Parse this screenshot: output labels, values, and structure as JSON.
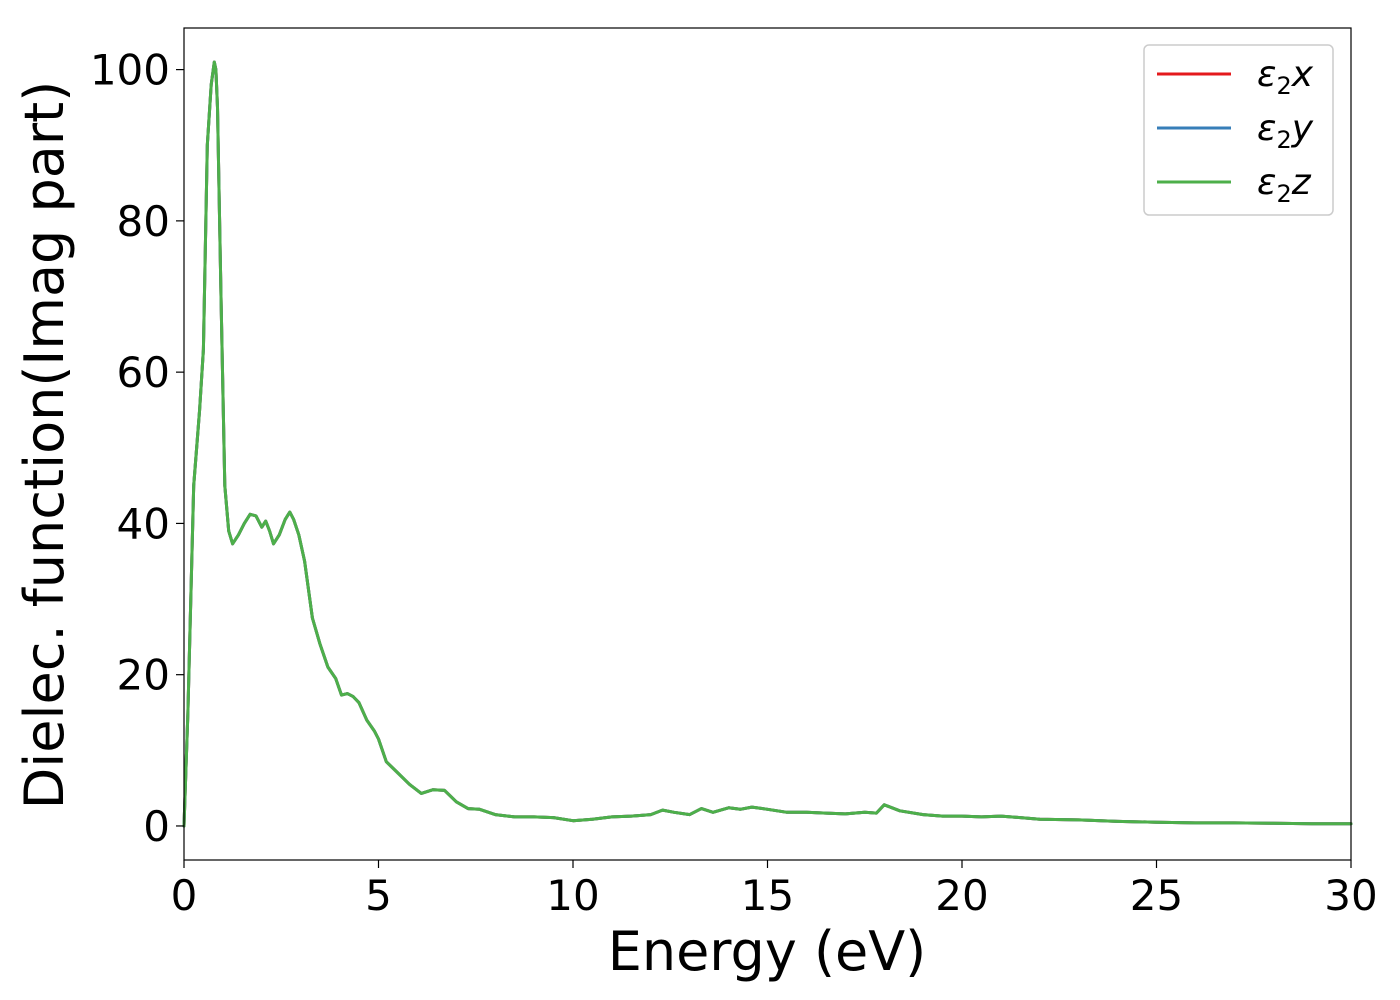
{
  "chart_data": {
    "type": "line",
    "xlabel": "Energy (eV)",
    "ylabel": "Dielec. function(Imag part)",
    "xlim": [
      0,
      30
    ],
    "ylim": [
      -4.5,
      105.5
    ],
    "xticks": [
      0,
      5,
      10,
      15,
      20,
      25,
      30
    ],
    "yticks": [
      0,
      20,
      40,
      60,
      80,
      100
    ],
    "legend_position": "top-right",
    "grid": false,
    "colors": {
      "x": "#e41a1c",
      "y": "#377eb8",
      "z": "#4daf4a"
    },
    "x": [
      0,
      0.1,
      0.25,
      0.4,
      0.5,
      0.6,
      0.7,
      0.78,
      0.82,
      0.86,
      0.95,
      1.05,
      1.15,
      1.25,
      1.4,
      1.55,
      1.7,
      1.85,
      2.0,
      2.1,
      2.2,
      2.3,
      2.45,
      2.6,
      2.72,
      2.82,
      2.95,
      3.1,
      3.3,
      3.5,
      3.7,
      3.9,
      4.05,
      4.2,
      4.35,
      4.5,
      4.7,
      4.9,
      5.0,
      5.2,
      5.5,
      5.8,
      6.1,
      6.4,
      6.7,
      7.0,
      7.3,
      7.6,
      8.0,
      8.5,
      9.0,
      9.5,
      10.0,
      10.5,
      11.0,
      11.5,
      12.0,
      12.3,
      12.6,
      13.0,
      13.3,
      13.6,
      14.0,
      14.3,
      14.6,
      15.0,
      15.5,
      16.0,
      16.5,
      17.0,
      17.5,
      17.8,
      18.0,
      18.4,
      19.0,
      19.5,
      20.0,
      20.5,
      21.0,
      22.0,
      23.0,
      24.0,
      25.0,
      26.0,
      27.0,
      28.0,
      29.0,
      30.0
    ],
    "series": [
      {
        "name": "ε2x",
        "label_base": "ε",
        "label_sub": "2",
        "label_axis": "x",
        "values": [
          0,
          15,
          45,
          55,
          63,
          90,
          98,
          101,
          100,
          95,
          70,
          45,
          39,
          37.3,
          38.5,
          40,
          41.2,
          41,
          39.5,
          40.3,
          39,
          37.3,
          38.5,
          40.5,
          41.5,
          40.5,
          38.5,
          35,
          27.5,
          24,
          21,
          19.5,
          17.3,
          17.5,
          17.1,
          16.3,
          14,
          12.5,
          11.5,
          8.5,
          7,
          5.5,
          4.3,
          4.8,
          4.7,
          3.2,
          2.3,
          2.2,
          1.5,
          1.2,
          1.2,
          1.1,
          0.7,
          0.9,
          1.2,
          1.3,
          1.5,
          2.1,
          1.8,
          1.5,
          2.3,
          1.8,
          2.4,
          2.2,
          2.5,
          2.2,
          1.8,
          1.8,
          1.7,
          1.6,
          1.8,
          1.7,
          2.8,
          2.0,
          1.5,
          1.3,
          1.3,
          1.2,
          1.3,
          0.9,
          0.8,
          0.6,
          0.5,
          0.4,
          0.4,
          0.35,
          0.3,
          0.3
        ]
      },
      {
        "name": "ε2y",
        "label_base": "ε",
        "label_sub": "2",
        "label_axis": "y",
        "values": [
          0,
          15,
          45,
          55,
          63,
          90,
          98,
          101,
          100,
          95,
          70,
          45,
          39,
          37.3,
          38.5,
          40,
          41.2,
          41,
          39.5,
          40.3,
          39,
          37.3,
          38.5,
          40.5,
          41.5,
          40.5,
          38.5,
          35,
          27.5,
          24,
          21,
          19.5,
          17.3,
          17.5,
          17.1,
          16.3,
          14,
          12.5,
          11.5,
          8.5,
          7,
          5.5,
          4.3,
          4.8,
          4.7,
          3.2,
          2.3,
          2.2,
          1.5,
          1.2,
          1.2,
          1.1,
          0.7,
          0.9,
          1.2,
          1.3,
          1.5,
          2.1,
          1.8,
          1.5,
          2.3,
          1.8,
          2.4,
          2.2,
          2.5,
          2.2,
          1.8,
          1.8,
          1.7,
          1.6,
          1.8,
          1.7,
          2.8,
          2.0,
          1.5,
          1.3,
          1.3,
          1.2,
          1.3,
          0.9,
          0.8,
          0.6,
          0.5,
          0.4,
          0.4,
          0.35,
          0.3,
          0.3
        ]
      },
      {
        "name": "ε2z",
        "label_base": "ε",
        "label_sub": "2",
        "label_axis": "z",
        "values": [
          0,
          15,
          45,
          55,
          63,
          90,
          98,
          101,
          100,
          95,
          70,
          45,
          39,
          37.3,
          38.5,
          40,
          41.2,
          41,
          39.5,
          40.3,
          39,
          37.3,
          38.5,
          40.5,
          41.5,
          40.5,
          38.5,
          35,
          27.5,
          24,
          21,
          19.5,
          17.3,
          17.5,
          17.1,
          16.3,
          14,
          12.5,
          11.5,
          8.5,
          7,
          5.5,
          4.3,
          4.8,
          4.7,
          3.2,
          2.3,
          2.2,
          1.5,
          1.2,
          1.2,
          1.1,
          0.7,
          0.9,
          1.2,
          1.3,
          1.5,
          2.1,
          1.8,
          1.5,
          2.3,
          1.8,
          2.4,
          2.2,
          2.5,
          2.2,
          1.8,
          1.8,
          1.7,
          1.6,
          1.8,
          1.7,
          2.8,
          2.0,
          1.5,
          1.3,
          1.3,
          1.2,
          1.3,
          0.9,
          0.8,
          0.6,
          0.5,
          0.4,
          0.4,
          0.35,
          0.3,
          0.3
        ]
      }
    ]
  }
}
